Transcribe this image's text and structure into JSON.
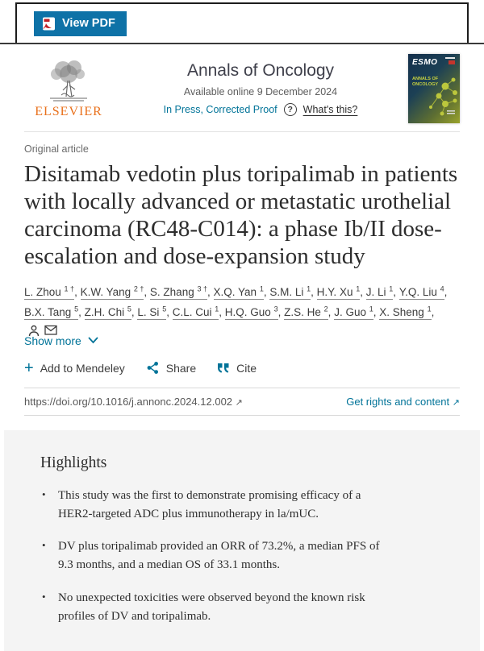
{
  "colors": {
    "accent_teal": "#007398",
    "pdf_button_blue": "#0e72a7",
    "elsevier_orange": "#e9711c",
    "highlight_bg": "#f4f4f4"
  },
  "icons": {
    "plus": "+",
    "question": "?",
    "external_arrow": "↗"
  },
  "toolbar": {
    "view_pdf_label": "View PDF"
  },
  "header": {
    "publisher": "ELSEVIER",
    "journal_title": "Annals of Oncology",
    "available_online": "Available online 9 December 2024",
    "in_press_label": "In Press, Corrected Proof",
    "whats_this_label": "What's this?",
    "cover": {
      "brand": "ESMO",
      "title": "ANNALS OF ONCOLOGY"
    }
  },
  "article": {
    "type_label": "Original article",
    "title": "Disitamab vedotin plus toripalimab in patients with locally advanced or metastatic urothelial carcinoma (RC48-C014): a phase Ib/II dose-escalation and dose-expansion study",
    "authors": [
      {
        "name": "L. Zhou",
        "sup": "1 †"
      },
      {
        "name": "K.W. Yang",
        "sup": "2 †"
      },
      {
        "name": "S. Zhang",
        "sup": "3 †"
      },
      {
        "name": "X.Q. Yan",
        "sup": "1"
      },
      {
        "name": "S.M. Li",
        "sup": "1"
      },
      {
        "name": "H.Y. Xu",
        "sup": "1"
      },
      {
        "name": "J. Li",
        "sup": "1"
      },
      {
        "name": "Y.Q. Liu",
        "sup": "4"
      },
      {
        "name": "B.X. Tang",
        "sup": "5"
      },
      {
        "name": "Z.H. Chi",
        "sup": "5"
      },
      {
        "name": "L. Si",
        "sup": "5"
      },
      {
        "name": "C.L. Cui",
        "sup": "1"
      },
      {
        "name": "H.Q. Guo",
        "sup": "3"
      },
      {
        "name": "Z.S. He",
        "sup": "2"
      },
      {
        "name": "J. Guo",
        "sup": "1"
      },
      {
        "name": "X. Sheng",
        "sup": "1"
      }
    ],
    "show_more_label": "Show more",
    "actions": {
      "mendeley_label": "Add to Mendeley",
      "share_label": "Share",
      "cite_label": "Cite"
    },
    "doi": "https://doi.org/10.1016/j.annonc.2024.12.002",
    "rights_label": "Get rights and content"
  },
  "highlights": {
    "heading": "Highlights",
    "items": [
      "This study was the first to demonstrate promising efficacy of a HER2-targeted ADC plus immunotherapy in la/mUC.",
      "DV plus toripalimab provided an ORR of 73.2%, a median PFS of 9.3 months, and a median OS of 33.1 months.",
      "No unexpected toxicities were observed beyond the known risk profiles of DV and toripalimab."
    ]
  }
}
